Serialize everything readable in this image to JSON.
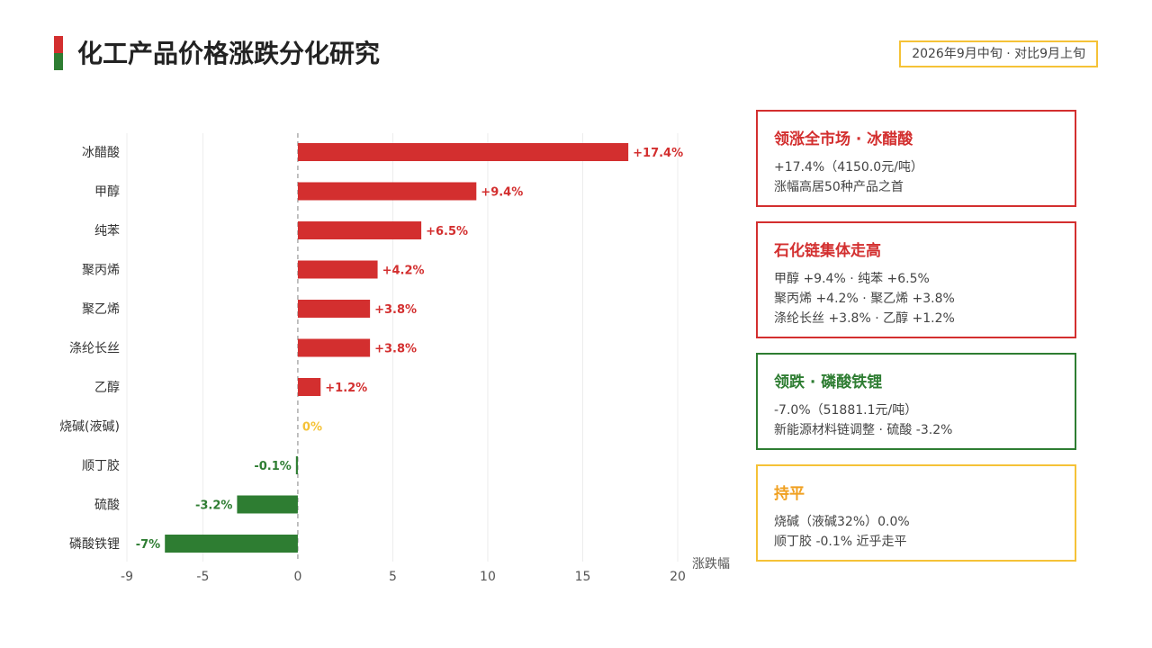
{
  "header": {
    "title": "化工产品价格涨跌分化研究",
    "date_badge": "2026年9月中旬 · 对比9月上旬"
  },
  "colors": {
    "up": "#d32f2f",
    "down": "#2e7d32",
    "flat": "#f5c237",
    "title_flat": "#f0a020"
  },
  "chart_data": {
    "type": "bar",
    "orientation": "horizontal",
    "categories": [
      "冰醋酸",
      "甲醇",
      "纯苯",
      "聚丙烯",
      "聚乙烯",
      "涤纶长丝",
      "乙醇",
      "烧碱(液碱)",
      "顺丁胶",
      "硫酸",
      "磷酸铁锂"
    ],
    "values": [
      17.4,
      9.4,
      6.5,
      4.2,
      3.8,
      3.8,
      1.2,
      0,
      -0.1,
      -3.2,
      -7.0
    ],
    "data_labels": [
      "+17.4%",
      "+9.4%",
      "+6.5%",
      "+4.2%",
      "+3.8%",
      "+3.8%",
      "+1.2%",
      "0%",
      "-0.1%",
      "-3.2%",
      "-7%"
    ],
    "xlabel": "涨跌幅",
    "xlim": [
      -9,
      20
    ],
    "xticks": [
      -9,
      -5,
      0,
      5,
      10,
      15,
      20
    ],
    "grid": "vertical",
    "zero_line": "dashed"
  },
  "cards": [
    {
      "title": "领涨全市场 · 冰醋酸",
      "lines": [
        "+17.4%（4150.0元/吨）",
        "涨幅高居50种产品之首"
      ],
      "tone": "up"
    },
    {
      "title": "石化链集体走高",
      "lines": [
        "甲醇 +9.4% · 纯苯 +6.5%",
        "聚丙烯 +4.2% · 聚乙烯 +3.8%",
        "涤纶长丝 +3.8% · 乙醇 +1.2%"
      ],
      "tone": "up"
    },
    {
      "title": "领跌 · 磷酸铁锂",
      "lines": [
        "-7.0%（51881.1元/吨）",
        "新能源材料链调整 · 硫酸 -3.2%"
      ],
      "tone": "down"
    },
    {
      "title": "持平",
      "lines": [
        "烧碱（液碱32%）0.0%",
        "顺丁胶 -0.1% 近乎走平"
      ],
      "tone": "flat"
    }
  ]
}
